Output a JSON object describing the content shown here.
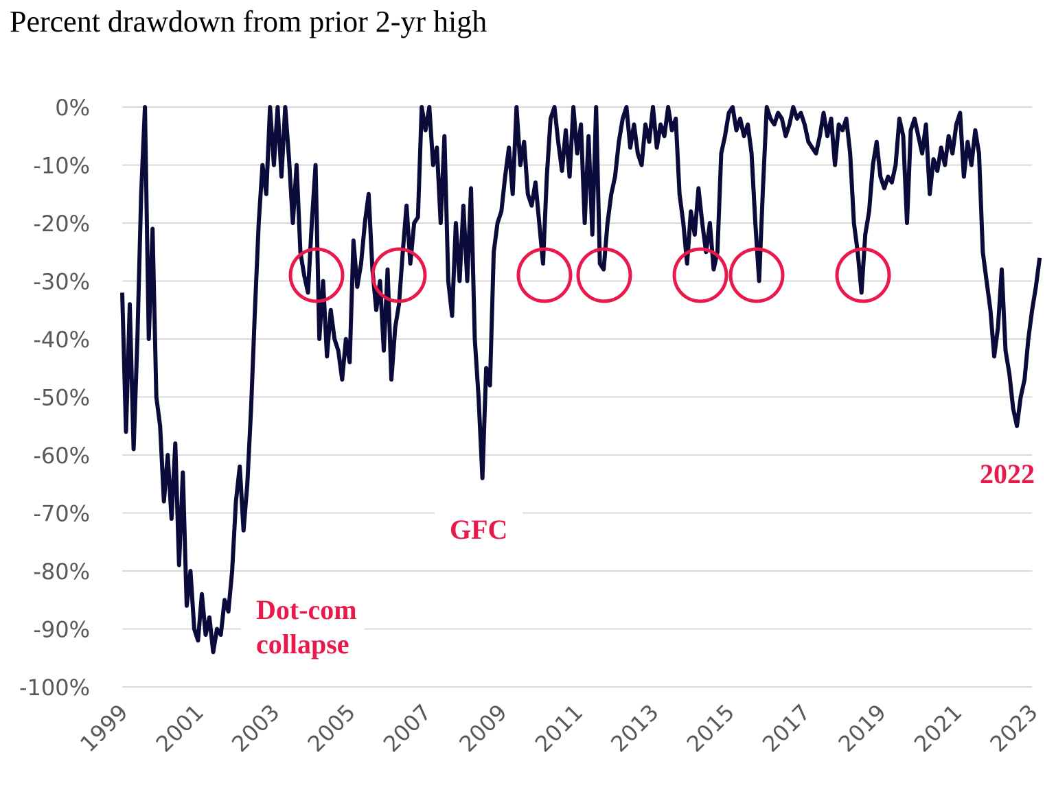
{
  "chart_data": {
    "type": "line",
    "title": "Percent drawdown from prior 2-yr high",
    "color": "#0b0b3b",
    "annotation_color": "#e8194b",
    "annotations": [
      [
        "Dot-com",
        "collapse"
      ],
      [
        "GFC"
      ],
      [
        "2022"
      ]
    ],
    "grid": true,
    "xlim": [
      1999,
      2023.25
    ],
    "ylim": [
      -100,
      0
    ],
    "xticks": [
      1999,
      2001,
      2003,
      2005,
      2007,
      2009,
      2011,
      2013,
      2015,
      2017,
      2019,
      2021,
      2023
    ],
    "yticks": [
      {
        "value": 0,
        "label": "0%"
      },
      {
        "value": -10,
        "label": "-10%"
      },
      {
        "value": -20,
        "label": "-20%"
      },
      {
        "value": -30,
        "label": "-30%"
      },
      {
        "value": -40,
        "label": "-40%"
      },
      {
        "value": -50,
        "label": "-50%"
      },
      {
        "value": -60,
        "label": "-60%"
      },
      {
        "value": -70,
        "label": "-70%"
      },
      {
        "value": -80,
        "label": "-80%"
      },
      {
        "value": -90,
        "label": "-90%"
      },
      {
        "value": -100,
        "label": "-100%"
      }
    ],
    "x": [
      1999,
      1999.1,
      1999.2,
      1999.3,
      1999.4,
      1999.5,
      1999.6,
      1999.7,
      1999.8,
      1999.9,
      2000,
      2000.1,
      2000.2,
      2000.3,
      2000.4,
      2000.5,
      2000.6,
      2000.7,
      2000.8,
      2000.9,
      2001,
      2001.1,
      2001.2,
      2001.3,
      2001.4,
      2001.5,
      2001.6,
      2001.7,
      2001.8,
      2001.9,
      2002,
      2002.1,
      2002.2,
      2002.3,
      2002.4,
      2002.5,
      2002.6,
      2002.7,
      2002.8,
      2002.9,
      2003,
      2003.1,
      2003.2,
      2003.3,
      2003.4,
      2003.5,
      2003.6,
      2003.7,
      2003.8,
      2003.9,
      2004,
      2004.1,
      2004.2,
      2004.3,
      2004.4,
      2004.5,
      2004.6,
      2004.7,
      2004.8,
      2004.9,
      2005,
      2005.1,
      2005.2,
      2005.3,
      2005.4,
      2005.5,
      2005.6,
      2005.7,
      2005.8,
      2005.9,
      2006,
      2006.1,
      2006.2,
      2006.3,
      2006.4,
      2006.5,
      2006.6,
      2006.7,
      2006.8,
      2006.9,
      2007,
      2007.1,
      2007.2,
      2007.3,
      2007.4,
      2007.5,
      2007.6,
      2007.7,
      2007.8,
      2007.9,
      2008,
      2008.1,
      2008.2,
      2008.3,
      2008.4,
      2008.5,
      2008.6,
      2008.7,
      2008.8,
      2008.9,
      2009,
      2009.1,
      2009.2,
      2009.3,
      2009.4,
      2009.5,
      2009.6,
      2009.7,
      2009.8,
      2009.9,
      2010,
      2010.1,
      2010.2,
      2010.3,
      2010.4,
      2010.5,
      2010.6,
      2010.7,
      2010.8,
      2010.9,
      2011,
      2011.1,
      2011.2,
      2011.3,
      2011.4,
      2011.5,
      2011.6,
      2011.7,
      2011.8,
      2011.9,
      2012,
      2012.1,
      2012.2,
      2012.3,
      2012.4,
      2012.5,
      2012.6,
      2012.7,
      2012.8,
      2012.9,
      2013,
      2013.1,
      2013.2,
      2013.3,
      2013.4,
      2013.5,
      2013.6,
      2013.7,
      2013.8,
      2013.9,
      2014,
      2014.1,
      2014.2,
      2014.3,
      2014.4,
      2014.5,
      2014.6,
      2014.7,
      2014.8,
      2014.9,
      2015,
      2015.1,
      2015.2,
      2015.3,
      2015.4,
      2015.5,
      2015.6,
      2015.7,
      2015.8,
      2015.9,
      2016,
      2016.1,
      2016.2,
      2016.3,
      2016.4,
      2016.5,
      2016.6,
      2016.7,
      2016.8,
      2016.9,
      2017,
      2017.1,
      2017.2,
      2017.3,
      2017.4,
      2017.5,
      2017.6,
      2017.7,
      2017.8,
      2017.9,
      2018,
      2018.1,
      2018.2,
      2018.3,
      2018.4,
      2018.5,
      2018.6,
      2018.7,
      2018.8,
      2018.9,
      2019,
      2019.1,
      2019.2,
      2019.3,
      2019.4,
      2019.5,
      2019.6,
      2019.7,
      2019.8,
      2019.9,
      2020,
      2020.1,
      2020.2,
      2020.3,
      2020.4,
      2020.5,
      2020.6,
      2020.7,
      2020.8,
      2020.9,
      2021,
      2021.1,
      2021.2,
      2021.3,
      2021.4,
      2021.5,
      2021.6,
      2021.7,
      2021.8,
      2021.9,
      2022,
      2022.1,
      2022.2,
      2022.3,
      2022.4,
      2022.5,
      2022.6,
      2022.7,
      2022.8,
      2022.9,
      2023,
      2023.1,
      2023.2
    ],
    "values": [
      -32,
      -56,
      -34,
      -59,
      -40,
      -15,
      0,
      -40,
      -21,
      -50,
      -55,
      -68,
      -60,
      -71,
      -58,
      -79,
      -63,
      -86,
      -80,
      -90,
      -92,
      -84,
      -91,
      -88,
      -94,
      -90,
      -91,
      -85,
      -87,
      -80,
      -68,
      -62,
      -73,
      -65,
      -52,
      -35,
      -20,
      -10,
      -15,
      0,
      -10,
      0,
      -12,
      0,
      -9,
      -20,
      -10,
      -25,
      -29,
      -32,
      -20,
      -10,
      -40,
      -30,
      -43,
      -35,
      -40,
      -42,
      -47,
      -40,
      -44,
      -23,
      -31,
      -27,
      -20,
      -15,
      -28,
      -35,
      -30,
      -42,
      -28,
      -47,
      -38,
      -34,
      -25,
      -17,
      -27,
      -20,
      -19,
      0,
      -4,
      0,
      -10,
      -7,
      -20,
      -5,
      -30,
      -36,
      -20,
      -30,
      -17,
      -30,
      -14,
      -40,
      -50,
      -64,
      -45,
      -48,
      -25,
      -20,
      -18,
      -12,
      -7,
      -15,
      0,
      -10,
      -6,
      -15,
      -17,
      -13,
      -20,
      -27,
      -12,
      -2,
      0,
      -6,
      -11,
      -4,
      -12,
      0,
      -8,
      -3,
      -20,
      -5,
      -22,
      0,
      -27,
      -28,
      -20,
      -15,
      -12,
      -6,
      -2,
      0,
      -7,
      -3,
      -8,
      -10,
      -3,
      -6,
      0,
      -7,
      -3,
      -5,
      0,
      -4,
      -2,
      -15,
      -20,
      -27,
      -18,
      -22,
      -14,
      -20,
      -25,
      -20,
      -28,
      -25,
      -8,
      -5,
      -1,
      0,
      -4,
      -2,
      -5,
      -3,
      -8,
      -20,
      -30,
      -14,
      0,
      -2,
      -3,
      -1,
      -2,
      -5,
      -3,
      0,
      -2,
      -1,
      -3,
      -6,
      -7,
      -8,
      -5,
      -1,
      -5,
      -2,
      -10,
      -3,
      -4,
      -2,
      -8,
      -20,
      -25,
      -32,
      -22,
      -18,
      -10,
      -6,
      -12,
      -14,
      -12,
      -13,
      -10,
      -2,
      -5,
      -20,
      -4,
      -2,
      -5,
      -8,
      -3,
      -15,
      -9,
      -11,
      -7,
      -10,
      -5,
      -8,
      -3,
      -1,
      -12,
      -6,
      -10,
      -4,
      -8,
      -25,
      -30,
      -35,
      -43,
      -38,
      -28,
      -42,
      -46,
      -52,
      -55,
      -50,
      -47,
      -40,
      -35,
      -31,
      -26
    ]
  }
}
